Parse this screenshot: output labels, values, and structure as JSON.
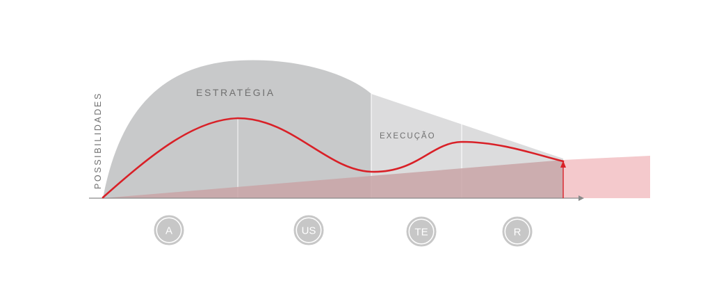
{
  "labels": {
    "y_axis": "POSSIBILIDADES",
    "strategy": "ESTRATÉGIA",
    "execution": "EXECUÇÃO"
  },
  "phases": [
    {
      "label": "A"
    },
    {
      "label": "US"
    },
    {
      "label": "TE"
    },
    {
      "label": "R"
    }
  ],
  "colors": {
    "strategy_area": "#c8c9ca",
    "execution_area": "#dcdcdd",
    "red_wedge_inner": "#c9a5a7",
    "red_wedge_outer": "#f4c9cc",
    "curve": "#d92027",
    "badge_fill": "#c7c7c7",
    "axis": "#8a8a8a"
  }
}
